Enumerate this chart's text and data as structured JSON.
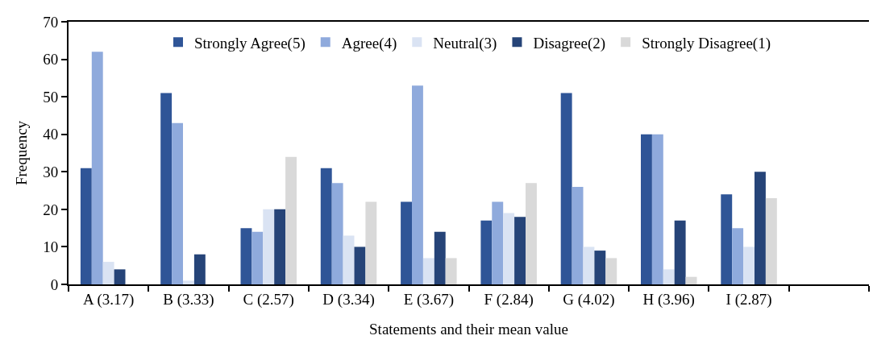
{
  "chart_data": {
    "type": "bar",
    "xlabel": "Statements and their mean value",
    "ylabel": "Frequency",
    "categories": [
      "A (3.17)",
      "B (3.33)",
      "C (2.57)",
      "D (3.34)",
      "E (3.67)",
      "F (2.84)",
      "G (4.02)",
      "H (3.96)",
      "I (2.87)",
      null
    ],
    "series": [
      {
        "name": "Strongly Agree(5)",
        "color": "#2f5597",
        "values": [
          31,
          51,
          15,
          31,
          22,
          17,
          51,
          40,
          24,
          null
        ]
      },
      {
        "name": "Agree(4)",
        "color": "#8faadc",
        "values": [
          62,
          43,
          14,
          27,
          53,
          22,
          26,
          40,
          15,
          null
        ]
      },
      {
        "name": "Neutral(3)",
        "color": "#dae3f3",
        "values": [
          6,
          1,
          20,
          13,
          7,
          19,
          10,
          4,
          10,
          null
        ]
      },
      {
        "name": "Disagree(2)",
        "color": "#264478",
        "values": [
          4,
          8,
          20,
          10,
          14,
          18,
          9,
          17,
          30,
          null
        ]
      },
      {
        "name": "Strongly Disagree(1)",
        "color": "#d9d9d9",
        "values": [
          0,
          0,
          34,
          22,
          7,
          27,
          7,
          2,
          23,
          null
        ]
      }
    ],
    "ylim": [
      0,
      70
    ],
    "yticks": [
      0,
      10,
      20,
      30,
      40,
      50,
      60,
      70
    ],
    "legend": "top"
  }
}
